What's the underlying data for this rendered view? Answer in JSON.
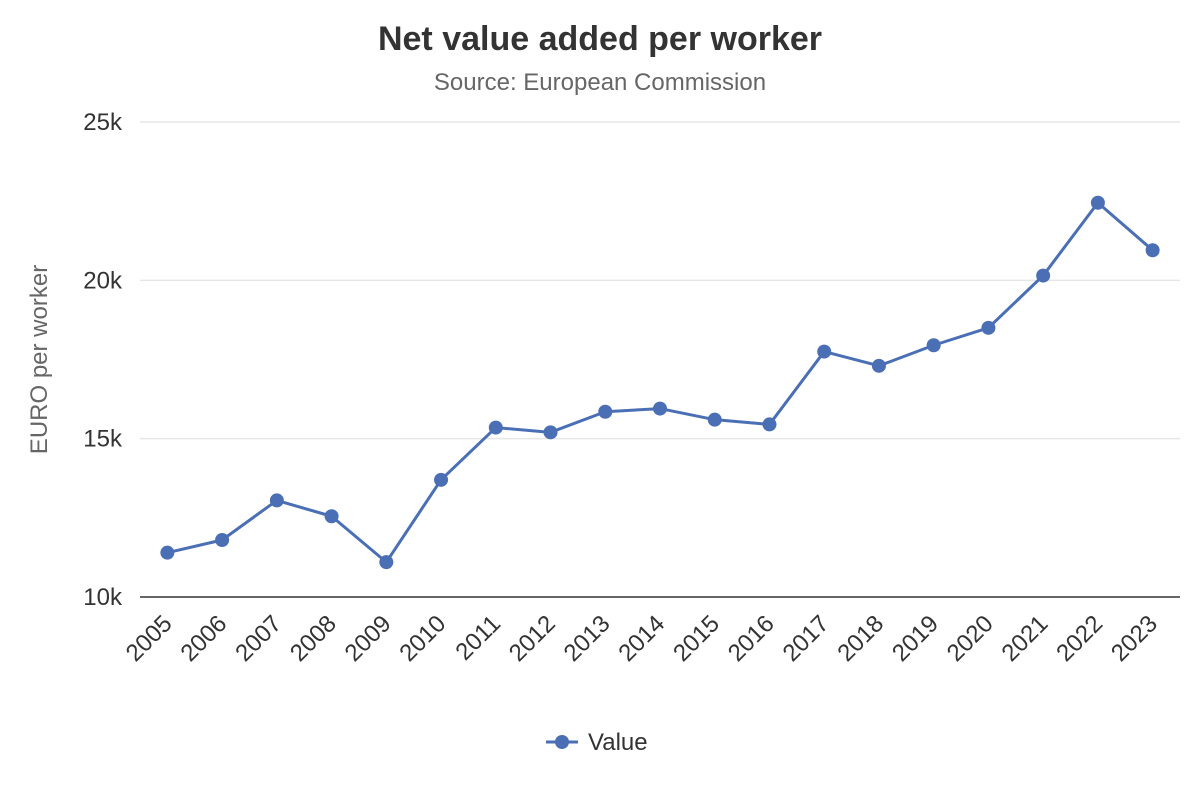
{
  "chart_data": {
    "type": "line",
    "title": "Net value added per worker",
    "subtitle": "Source: European Commission",
    "xlabel": "",
    "ylabel": "EURO per worker",
    "categories": [
      "2005",
      "2006",
      "2007",
      "2008",
      "2009",
      "2010",
      "2011",
      "2012",
      "2013",
      "2014",
      "2015",
      "2016",
      "2017",
      "2018",
      "2019",
      "2020",
      "2021",
      "2022",
      "2023"
    ],
    "series": [
      {
        "name": "Value",
        "values": [
          11400,
          11800,
          13050,
          12550,
          11100,
          13700,
          15350,
          15200,
          15850,
          15950,
          15600,
          15450,
          17750,
          17300,
          17950,
          18500,
          20150,
          22450,
          20950
        ]
      }
    ],
    "ylim": [
      10000,
      25000
    ],
    "yticks": [
      10000,
      15000,
      20000,
      25000
    ],
    "ytick_labels": [
      "10k",
      "15k",
      "20k",
      "25k"
    ],
    "grid": true,
    "legend_position": "bottom-center",
    "colors": {
      "series": "#4a6fb5"
    }
  }
}
